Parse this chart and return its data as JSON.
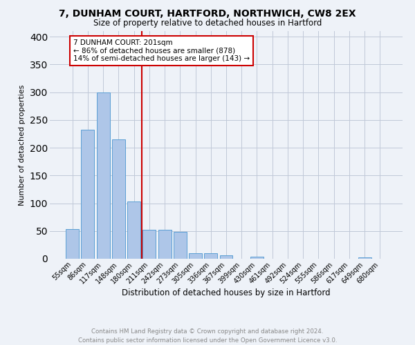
{
  "title1": "7, DUNHAM COURT, HARTFORD, NORTHWICH, CW8 2EX",
  "title2": "Size of property relative to detached houses in Hartford",
  "xlabel": "Distribution of detached houses by size in Hartford",
  "ylabel": "Number of detached properties",
  "annotation_line1": "7 DUNHAM COURT: 201sqm",
  "annotation_line2": "← 86% of detached houses are smaller (878)",
  "annotation_line3": "14% of semi-detached houses are larger (143) →",
  "bar_color": "#aec6e8",
  "bar_edge_color": "#5a9fd4",
  "grid_color": "#c0c8d8",
  "ref_line_color": "#cc0000",
  "categories": [
    "55sqm",
    "86sqm",
    "117sqm",
    "148sqm",
    "180sqm",
    "211sqm",
    "242sqm",
    "273sqm",
    "305sqm",
    "336sqm",
    "367sqm",
    "399sqm",
    "430sqm",
    "461sqm",
    "492sqm",
    "524sqm",
    "555sqm",
    "586sqm",
    "617sqm",
    "649sqm",
    "680sqm"
  ],
  "values": [
    53,
    232,
    300,
    215,
    103,
    52,
    52,
    49,
    10,
    10,
    6,
    0,
    4,
    0,
    0,
    0,
    0,
    0,
    0,
    3,
    0
  ],
  "ylim": [
    0,
    410
  ],
  "yticks": [
    0,
    50,
    100,
    150,
    200,
    250,
    300,
    350,
    400
  ],
  "footer": "Contains HM Land Registry data © Crown copyright and database right 2024.\nContains public sector information licensed under the Open Government Licence v3.0.",
  "footer_color": "#888888",
  "bg_color": "#eef2f8"
}
